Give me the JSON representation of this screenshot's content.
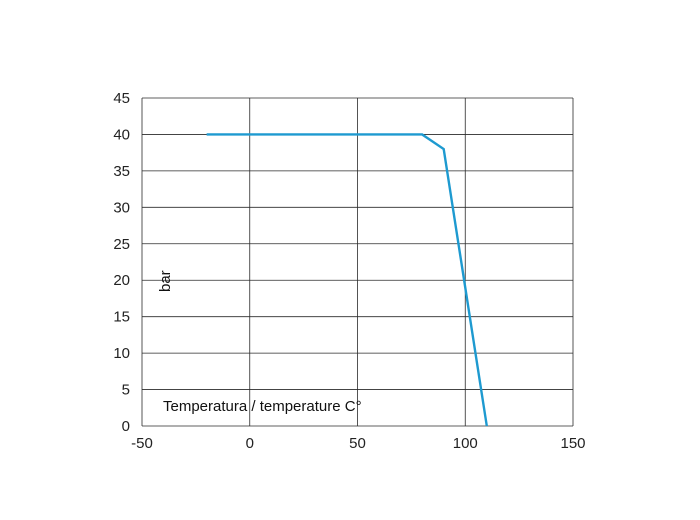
{
  "chart_data": {
    "type": "line",
    "xlabel": "Temperatura / temperature C°",
    "ylabel": "bar",
    "xlim": [
      -50,
      150
    ],
    "ylim": [
      0,
      45
    ],
    "x_ticks": [
      -50,
      0,
      50,
      100,
      150
    ],
    "y_ticks": [
      0,
      5,
      10,
      15,
      20,
      25,
      30,
      35,
      40,
      45
    ],
    "grid": true,
    "series": [
      {
        "color": "#1e9ad0",
        "x": [
          -20,
          80,
          90,
          110
        ],
        "y": [
          40,
          40,
          38,
          0
        ]
      }
    ]
  }
}
